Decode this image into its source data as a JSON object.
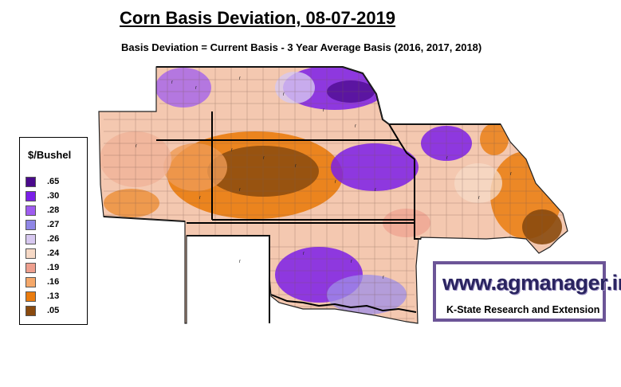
{
  "header": {
    "title": "Corn Basis Deviation, 08-07-2019",
    "subtitle": "Basis Deviation = Current Basis - 3 Year Average Basis (2016, 2017, 2018)"
  },
  "legend": {
    "title": "$/Bushel",
    "items": [
      {
        "label": ".65",
        "color": "#4a0a8c"
      },
      {
        "label": ".30",
        "color": "#7b1fe8"
      },
      {
        "label": ".28",
        "color": "#9f5cf0"
      },
      {
        "label": ".27",
        "color": "#8f86e6"
      },
      {
        "label": ".26",
        "color": "#d7c8f0"
      },
      {
        "label": ".24",
        "color": "#f6d9c6"
      },
      {
        "label": ".19",
        "color": "#ee9f8e"
      },
      {
        "label": ".16",
        "color": "#f5a86a"
      },
      {
        "label": ".13",
        "color": "#ea7c0e"
      },
      {
        "label": ".05",
        "color": "#8a4a0e"
      }
    ]
  },
  "brand": {
    "url": "www.agmanager.info",
    "tagline": "K-State Research and Extension",
    "border_color": "#6c5597"
  },
  "map": {
    "region": "Central Plains (NE, KS, OK, MO, CO plains)"
  }
}
